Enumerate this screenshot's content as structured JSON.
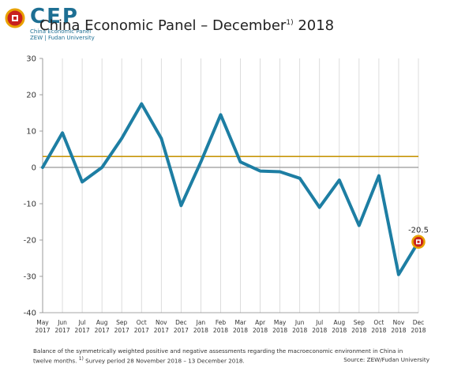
{
  "header": {
    "logo_text": "CEP",
    "logo_sub1": "China Economic Panel",
    "logo_sub2": "ZEW | Fudan University",
    "title_main": "China Economic Panel – December",
    "title_sup": "1)",
    "title_year": " 2018"
  },
  "footer": {
    "note_line1": "Balance of the symmetrically weighted positive and negative assessments regarding the macroeconomic environment in China in",
    "note_line2a": "twelve months. ",
    "note_sup": "1)",
    "note_line2b": " Survey period 28 November 2018 – 13 December 2018.",
    "source": "Source: ZEW/Fudan University"
  },
  "colors": {
    "line": "#1d7ea3",
    "average": "#c8960a",
    "zero": "#999999",
    "marker_fill": "#c8211e",
    "marker_ring": "#e8a100",
    "brand": "#1d6f93"
  },
  "chart_data": {
    "type": "line",
    "categories": [
      [
        "May",
        "2017"
      ],
      [
        "Jun",
        "2017"
      ],
      [
        "Jul",
        "2017"
      ],
      [
        "Aug",
        "2017"
      ],
      [
        "Sep",
        "2017"
      ],
      [
        "Oct",
        "2017"
      ],
      [
        "Nov",
        "2017"
      ],
      [
        "Dec",
        "2017"
      ],
      [
        "Jan",
        "2018"
      ],
      [
        "Feb",
        "2018"
      ],
      [
        "Mar",
        "2018"
      ],
      [
        "Apr",
        "2018"
      ],
      [
        "May",
        "2018"
      ],
      [
        "Jun",
        "2018"
      ],
      [
        "Jul",
        "2018"
      ],
      [
        "Aug",
        "2018"
      ],
      [
        "Sep",
        "2018"
      ],
      [
        "Oct",
        "2018"
      ],
      [
        "Nov",
        "2018"
      ],
      [
        "Dec",
        "2018"
      ]
    ],
    "series": [
      {
        "values": [
          0,
          9.5,
          -4,
          0,
          8,
          17.5,
          8,
          -10.5,
          1.5,
          14.5,
          1.5,
          -1,
          -1.2,
          -3,
          -11,
          -3.5,
          -16,
          -2.3,
          -29.5,
          -20.5
        ]
      }
    ],
    "reference_line": 3,
    "ylim": [
      -40,
      30
    ],
    "yticks": [
      30,
      20,
      10,
      0,
      -10,
      -20,
      -30,
      -40
    ],
    "last_label": "-20.5",
    "grid": "vertical",
    "legend": "none"
  }
}
